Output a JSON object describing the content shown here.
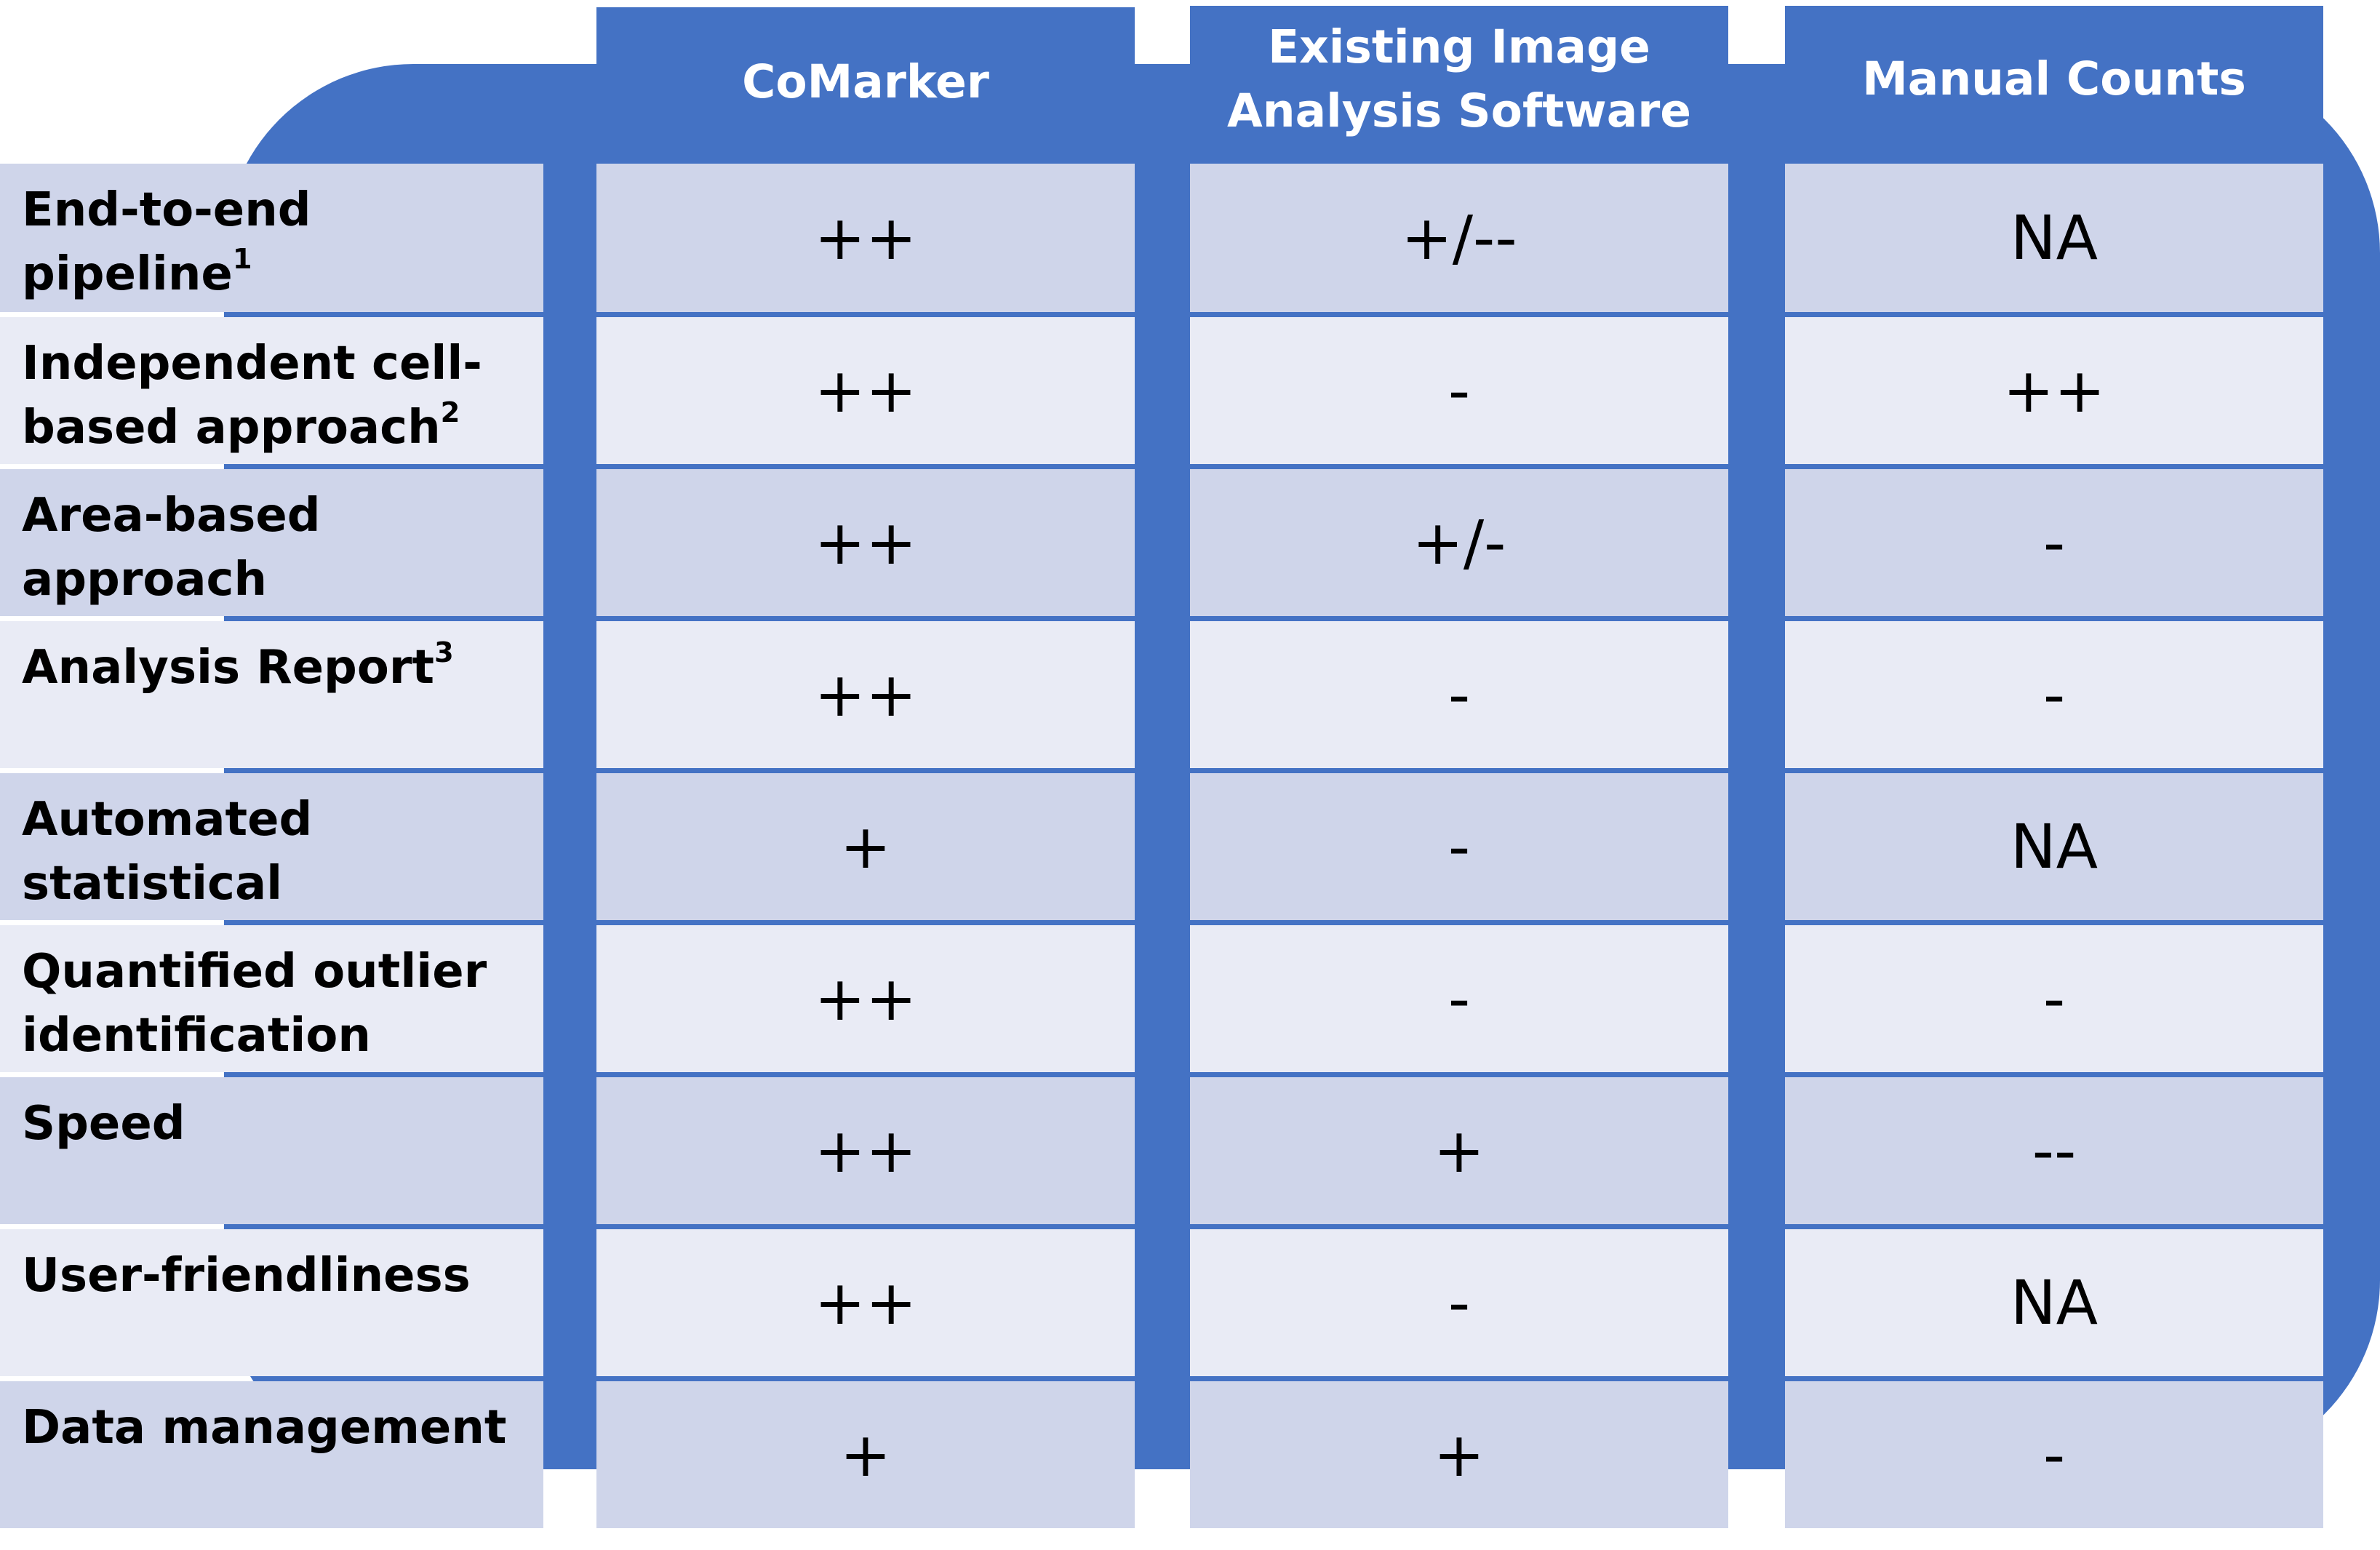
{
  "columns": [
    "CoMarker",
    "Existing Image\nAnalysis Software",
    "Manual Counts"
  ],
  "rows": [
    {
      "label": "End-to-end pipeline",
      "sup": "1",
      "values": [
        "++",
        "+/--",
        "NA"
      ]
    },
    {
      "label": "Independent cell-\nbased approach",
      "sup": "2",
      "values": [
        "++",
        "-",
        "++"
      ]
    },
    {
      "label": "Area-based approach",
      "sup": "",
      "values": [
        "++",
        "+/-",
        "-"
      ]
    },
    {
      "label": "Analysis Report",
      "sup": "3",
      "values": [
        "++",
        "-",
        "-"
      ]
    },
    {
      "label": "Automated statistical\nanalysis",
      "sup": "",
      "values": [
        "+",
        "-",
        "NA"
      ]
    },
    {
      "label": "Quantified outlier\nidentification",
      "sup": "",
      "values": [
        "++",
        "-",
        "-"
      ]
    },
    {
      "label": "Speed",
      "sup": "",
      "values": [
        "++",
        "+",
        "--"
      ]
    },
    {
      "label": "User-friendliness",
      "sup": "",
      "values": [
        "++",
        "-",
        "NA"
      ]
    },
    {
      "label": "Data management",
      "sup": "",
      "values": [
        "+",
        "+",
        "-"
      ]
    }
  ],
  "colors": {
    "header_blue": "#4472c4",
    "row_dark": "#cfd5ea",
    "row_light": "#e9ebf5"
  }
}
